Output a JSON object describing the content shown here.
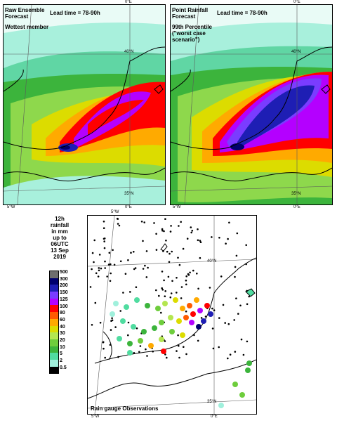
{
  "panels": {
    "left": {
      "title": "Raw Ensemble\nForecast",
      "subtitle": "Wettest member",
      "lead_time": "Lead time = 78-90h"
    },
    "right": {
      "title": "Point Rainfall\nForecast",
      "subtitle": "99th Percentile\n(\"worst case\nscenario\")",
      "lead_time": "Lead time = 78-90h"
    },
    "bottom": {
      "caption": "Rain gauge Observations"
    }
  },
  "map_ticks": {
    "top_lon_left": "5°W",
    "top_lon_right": "0°E",
    "lat_40": "40°N",
    "lat_35": "35°N",
    "bottom_lon_left": "5°W",
    "bottom_lon_right": "0°E"
  },
  "legend": {
    "title": "12h\nrainfall\nin mm\nup to\n06UTC\n13 Sep\n2019",
    "levels": [
      "500",
      "300",
      "200",
      "150",
      "125",
      "100",
      "80",
      "60",
      "40",
      "30",
      "20",
      "10",
      "5",
      "2",
      "0.5"
    ],
    "colors": [
      "#6e6e6e",
      "#00006e",
      "#1e1eb4",
      "#7a3cff",
      "#b400ff",
      "#ff0000",
      "#ff5a00",
      "#ffaa00",
      "#dcdc00",
      "#b4e650",
      "#6ecd3c",
      "#3cb43c",
      "#50dca0",
      "#a0f0dc",
      "#000000"
    ]
  },
  "colors": {
    "coast": "#000000",
    "grid": "#5a5a5a",
    "sea_light": "#c8f5ec"
  }
}
